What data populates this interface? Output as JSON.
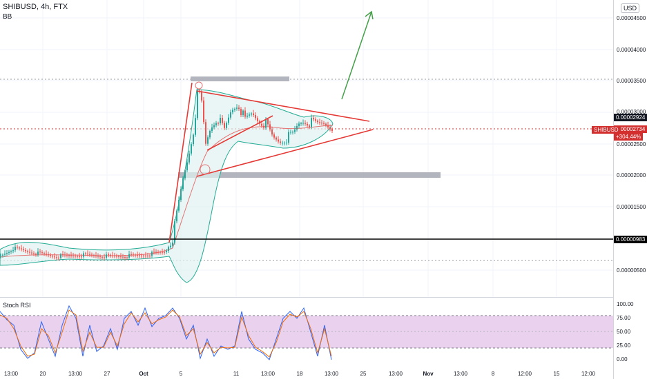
{
  "header": {
    "title": "SHIBUSD, 4h, FTX",
    "indicator": "BB",
    "currency": "USD"
  },
  "price_axis": [
    "0.00004500",
    "0.00004000",
    "0.00003500",
    "0.00003000",
    "0.00002500",
    "0.00002000",
    "0.00001500",
    "0.00000500"
  ],
  "price_tags": {
    "upper": "0.00002924",
    "current": "0.00002734",
    "change": "+304.44%",
    "symbol": "SHIBUSD",
    "support": "0.00000983"
  },
  "rsi": {
    "label": "Stoch RSI",
    "levels": [
      "100.00",
      "75.00",
      "50.00",
      "25.00",
      "0.00"
    ]
  },
  "time_axis": [
    "13:00",
    "20",
    "13:00",
    "27",
    "Oct",
    "5",
    "11",
    "13:00",
    "18",
    "13:00",
    "25",
    "13:00",
    "Nov",
    "13:00",
    "8",
    "12:00",
    "15",
    "12:00"
  ],
  "colors": {
    "up": "#26a69a",
    "down": "#ef5350",
    "band": "#22ab94",
    "annotation": "#e53935",
    "arrow": "#43a047",
    "rsi_fill": "#e1bee7"
  }
}
